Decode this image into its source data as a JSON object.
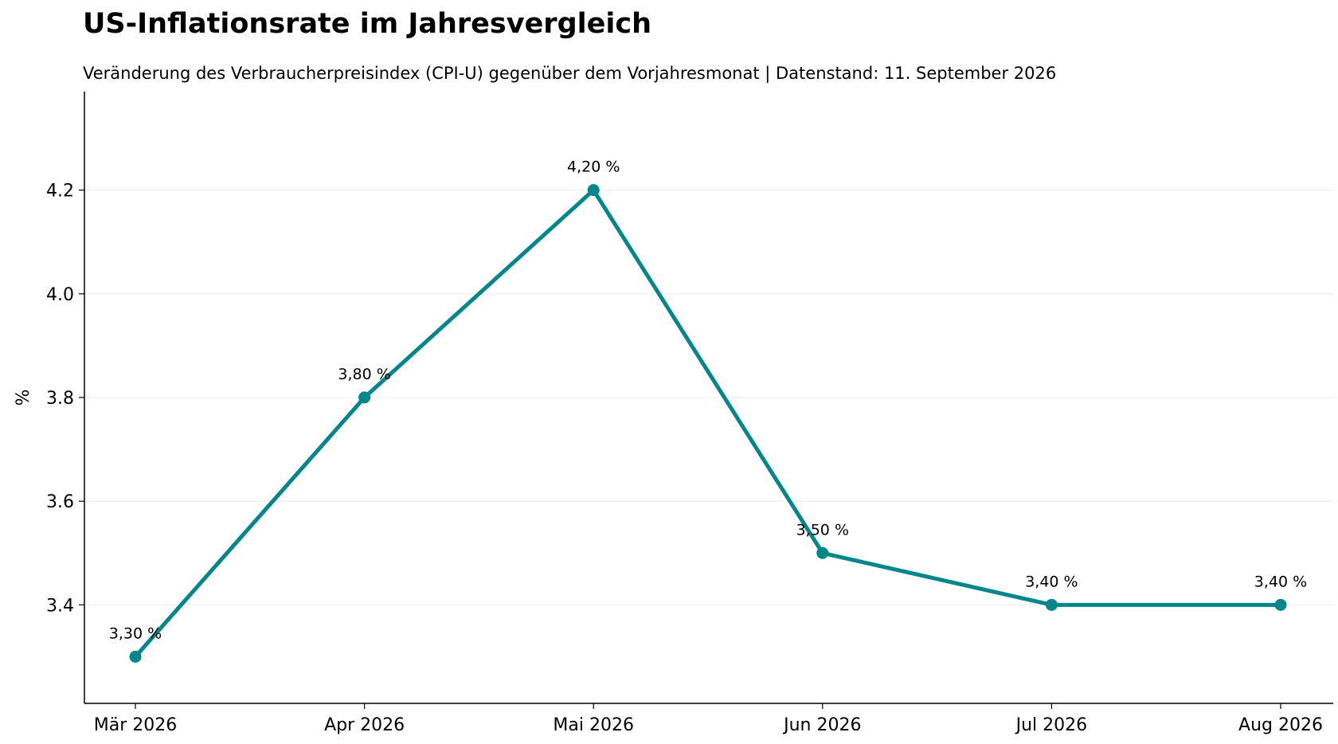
{
  "chart_data": {
    "type": "line",
    "title": "US-Inflationsrate im Jahresvergleich",
    "subtitle": "Veränderung des Verbraucherpreisindex (CPI-U) gegenüber dem Vorjahresmonat | Datenstand: 11. September 2026",
    "xlabel": "",
    "ylabel": "%",
    "categories": [
      "Mär 2026",
      "Apr 2026",
      "Mai 2026",
      "Jun 2026",
      "Jul 2026",
      "Aug 2026"
    ],
    "series": [
      {
        "values": [
          3.3,
          3.8,
          4.2,
          3.5,
          3.4,
          3.4
        ],
        "data_labels": [
          "3,30 %",
          "3,80 %",
          "4,20 %",
          "3,50 %",
          "3,40 %",
          "3,40 %"
        ]
      }
    ],
    "ylim": [
      3.21,
      4.39
    ],
    "yticks": [
      3.4,
      3.6,
      3.8,
      4.0,
      4.2
    ],
    "ytick_labels": [
      "3.4",
      "3.6",
      "3.8",
      "4.0",
      "4.2"
    ],
    "grid": "horizontal",
    "legend": "none",
    "line_color": "#00868B",
    "grid_color": "#ebebeb"
  }
}
